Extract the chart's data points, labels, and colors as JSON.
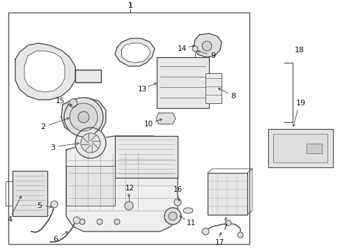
{
  "bg_color": "#ffffff",
  "fig_width": 4.89,
  "fig_height": 3.6,
  "dpi": 100,
  "image_b64": ""
}
